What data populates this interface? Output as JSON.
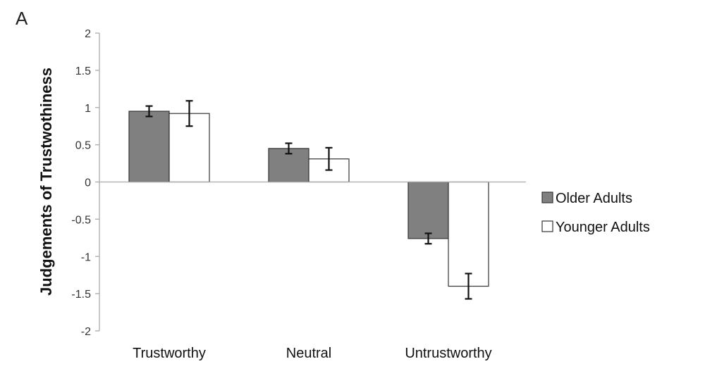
{
  "panel_label": "A",
  "chart_data": {
    "type": "bar",
    "ylabel": "Judgements of Trustwothiness",
    "xlabel": "",
    "categories": [
      "Trustworthy",
      "Neutral",
      "Untrustworthy"
    ],
    "ylim": [
      -2,
      2
    ],
    "yticks": [
      2,
      1.5,
      1,
      0.5,
      0,
      -0.5,
      -1,
      -1.5,
      -2
    ],
    "ytick_labels": [
      "2",
      "1.5",
      "1",
      "0.5",
      "0",
      "-0.5",
      "-1",
      "-1.5",
      "-2"
    ],
    "series": [
      {
        "name": "Older Adults",
        "color": "#808080",
        "values": [
          0.95,
          0.45,
          -0.76
        ],
        "errors": [
          0.07,
          0.07,
          0.07
        ]
      },
      {
        "name": "Younger Adults",
        "color": "#ffffff",
        "values": [
          0.92,
          0.31,
          -1.4
        ],
        "errors": [
          0.17,
          0.15,
          0.17
        ]
      }
    ],
    "legend_position": "right",
    "grid": false
  }
}
